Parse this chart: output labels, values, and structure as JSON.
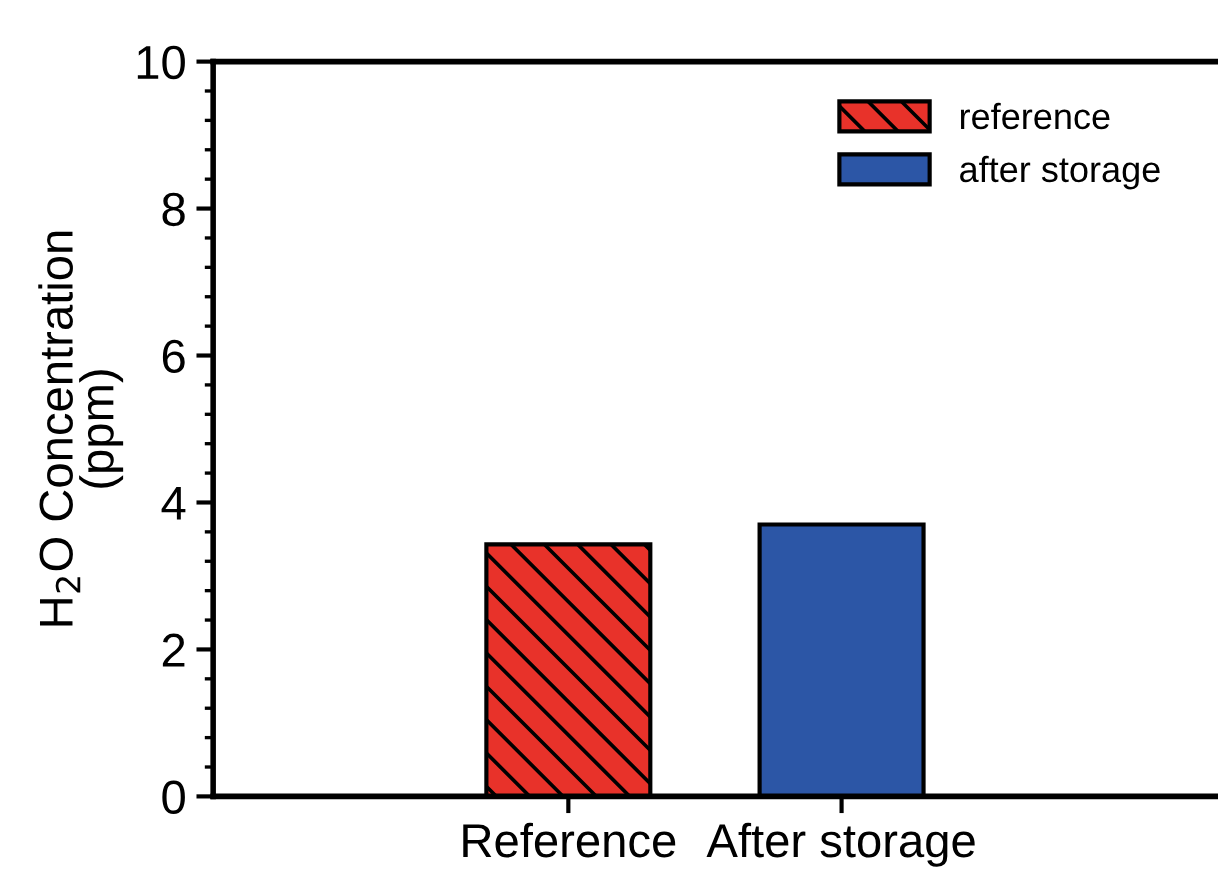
{
  "chart_data": {
    "type": "bar",
    "ylabel": "H$_{2}$O Concentration\n(ppm)",
    "categories": [
      "Reference",
      "After storage"
    ],
    "series": [
      {
        "name": "reference",
        "color": "#e8322a",
        "values": [
          3.43,
          null
        ]
      },
      {
        "name": "after storage",
        "color": "#2c56a6",
        "values": [
          null,
          3.7
        ]
      }
    ],
    "ylim": [
      0,
      10
    ],
    "yticks": [
      0,
      2,
      4,
      6,
      8,
      10
    ],
    "grid": false,
    "legend": "top right"
  }
}
